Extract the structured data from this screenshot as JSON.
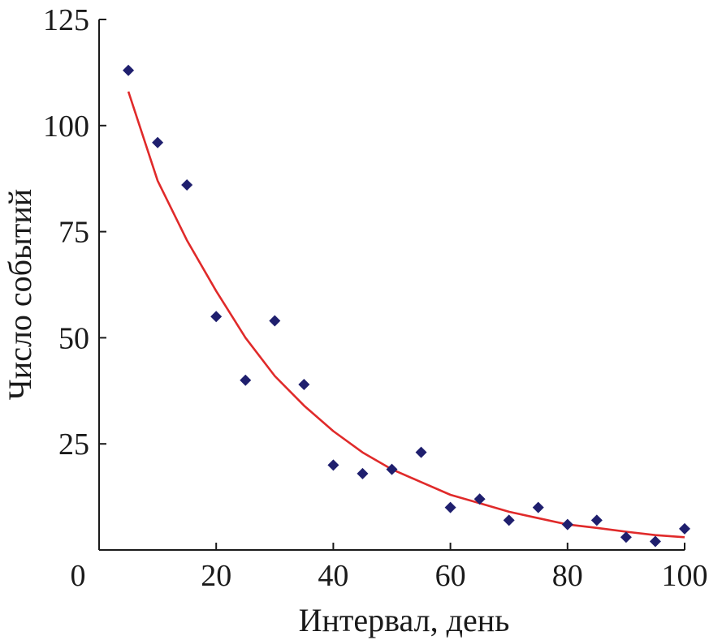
{
  "chart_data": {
    "type": "scatter",
    "xlabel": "Интервал, день",
    "ylabel": "Число событий",
    "xlim": [
      0,
      100
    ],
    "ylim": [
      0,
      125
    ],
    "xticks": [
      0,
      20,
      40,
      60,
      80,
      100
    ],
    "yticks": [
      25,
      50,
      75,
      100,
      125
    ],
    "xtick_labels": [
      "0",
      "20",
      "40",
      "60",
      "80",
      "100"
    ],
    "ytick_labels": [
      "25",
      "50",
      "75",
      "100",
      "125"
    ],
    "grid": false,
    "series": [
      {
        "kind": "points",
        "marker": "diamond",
        "color": "#1f1f6e",
        "x": [
          5,
          10,
          15,
          20,
          25,
          30,
          35,
          40,
          45,
          50,
          55,
          60,
          65,
          70,
          75,
          80,
          85,
          90,
          95,
          100
        ],
        "y": [
          113,
          96,
          86,
          55,
          40,
          54,
          39,
          20,
          18,
          19,
          23,
          10,
          12,
          7,
          10,
          6,
          7,
          3,
          2,
          5
        ]
      },
      {
        "kind": "fit",
        "color": "#e02a2a",
        "x": [
          5,
          10,
          15,
          20,
          25,
          30,
          35,
          40,
          45,
          50,
          55,
          60,
          65,
          70,
          75,
          80,
          85,
          90,
          95,
          100
        ],
        "y": [
          108,
          87,
          73,
          61,
          50,
          41,
          34,
          28,
          23,
          19,
          16,
          13,
          11,
          9,
          7.5,
          6,
          5.2,
          4.3,
          3.5,
          3
        ]
      }
    ]
  }
}
